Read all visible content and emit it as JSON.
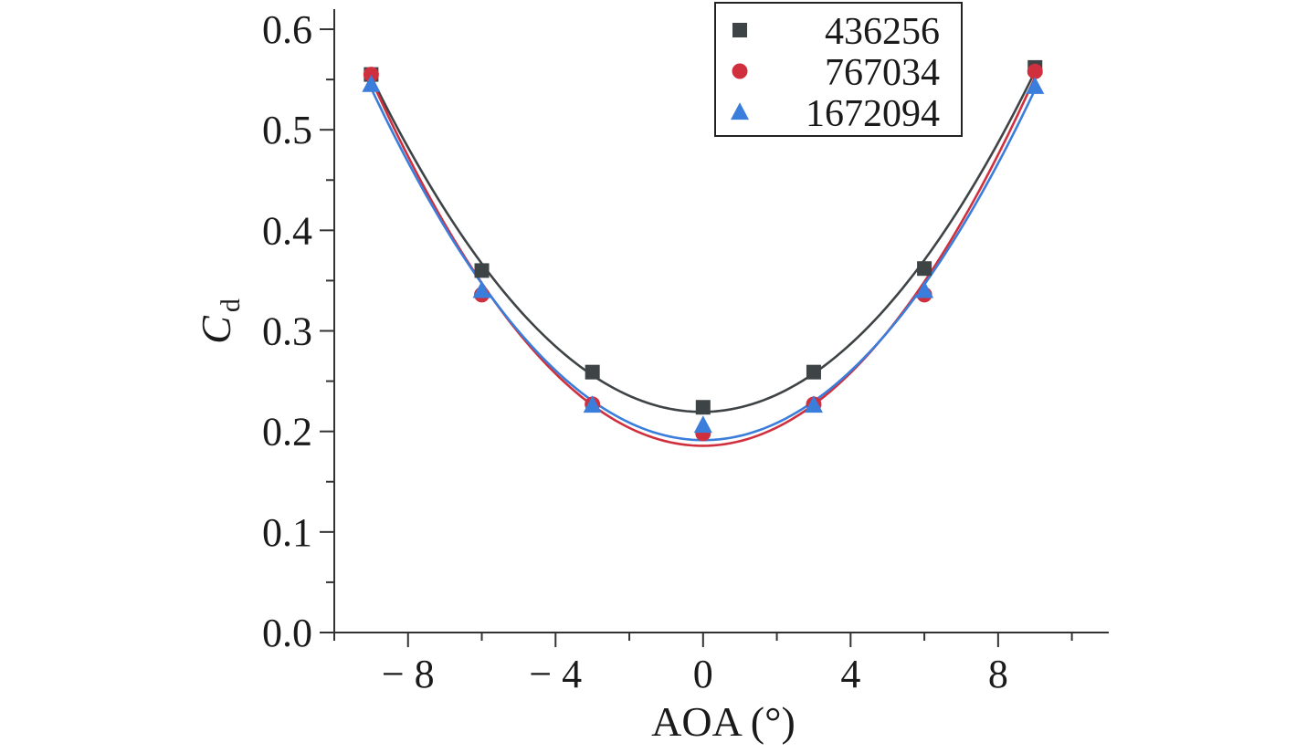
{
  "chart_data": {
    "type": "scatter",
    "xlabel": "AOA (°)",
    "ylabel": "C",
    "ylabel_subscript": "d",
    "xlim": [
      -10,
      11
    ],
    "ylim": [
      0,
      0.62
    ],
    "x_ticks": [
      {
        "value": -8,
        "label": "− 8"
      },
      {
        "value": -4,
        "label": "− 4"
      },
      {
        "value": 0,
        "label": "0"
      },
      {
        "value": 4,
        "label": "4"
      },
      {
        "value": 8,
        "label": "8"
      }
    ],
    "y_ticks": [
      {
        "value": 0.0,
        "label": "0.0"
      },
      {
        "value": 0.1,
        "label": "0.1"
      },
      {
        "value": 0.2,
        "label": "0.2"
      },
      {
        "value": 0.3,
        "label": "0.3"
      },
      {
        "value": 0.4,
        "label": "0.4"
      },
      {
        "value": 0.5,
        "label": "0.5"
      },
      {
        "value": 0.6,
        "label": "0.6"
      }
    ],
    "x_minor_step": 2,
    "y_minor_step": 0.05,
    "grid": false,
    "legend_position": "top-right",
    "fit_curves": true,
    "series": [
      {
        "name": "436256",
        "marker": "square",
        "color": "#3e4346",
        "x": [
          -9,
          -6,
          -3,
          0,
          3,
          6,
          9
        ],
        "y": [
          0.555,
          0.36,
          0.259,
          0.224,
          0.259,
          0.362,
          0.562
        ]
      },
      {
        "name": "767034",
        "marker": "circle",
        "color": "#d0303d",
        "x": [
          -9,
          -6,
          -3,
          0,
          3,
          6,
          9
        ],
        "y": [
          0.555,
          0.336,
          0.227,
          0.198,
          0.227,
          0.336,
          0.558
        ]
      },
      {
        "name": "1672094",
        "marker": "triangle",
        "color": "#3a7ddb",
        "x": [
          -9,
          -6,
          -3,
          0,
          3,
          6,
          9
        ],
        "y": [
          0.545,
          0.34,
          0.226,
          0.206,
          0.226,
          0.34,
          0.543
        ]
      }
    ]
  }
}
